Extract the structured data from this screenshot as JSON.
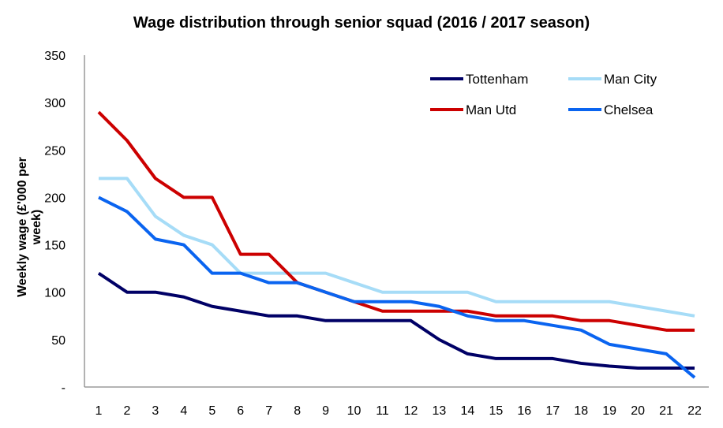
{
  "chart_data": {
    "type": "line",
    "title": "Wage distribution through senior squad (2016 / 2017 season)",
    "xlabel": "",
    "ylabel": "Weekly wage (£'000 per week)",
    "ylim": [
      0,
      350
    ],
    "yticks": [
      0,
      50,
      100,
      150,
      200,
      250,
      300,
      350
    ],
    "ytick_labels": [
      "-",
      "50",
      "100",
      "150",
      "200",
      "250",
      "300",
      "350"
    ],
    "grid": false,
    "legend": "top-right",
    "categories": [
      "1",
      "2",
      "3",
      "4",
      "5",
      "6",
      "7",
      "8",
      "9",
      "10",
      "11",
      "12",
      "13",
      "14",
      "15",
      "16",
      "17",
      "18",
      "19",
      "20",
      "21",
      "22"
    ],
    "series": [
      {
        "name": "Tottenham",
        "color": "#000066",
        "values": [
          120,
          100,
          100,
          95,
          85,
          80,
          75,
          75,
          70,
          70,
          70,
          70,
          50,
          35,
          30,
          30,
          30,
          25,
          22,
          20,
          20,
          20
        ]
      },
      {
        "name": "Man City",
        "color": "#a6dcf7",
        "values": [
          220,
          220,
          180,
          160,
          150,
          120,
          120,
          120,
          120,
          110,
          100,
          100,
          100,
          100,
          90,
          90,
          90,
          90,
          90,
          85,
          80,
          75
        ]
      },
      {
        "name": "Man Utd",
        "color": "#cc0000",
        "values": [
          290,
          260,
          220,
          200,
          200,
          140,
          140,
          110,
          100,
          90,
          80,
          80,
          80,
          80,
          75,
          75,
          75,
          70,
          70,
          65,
          60,
          60
        ]
      },
      {
        "name": "Chelsea",
        "color": "#0a64f0",
        "values": [
          200,
          185,
          156,
          150,
          120,
          120,
          110,
          110,
          100,
          90,
          90,
          90,
          85,
          75,
          70,
          70,
          65,
          60,
          45,
          40,
          35,
          10
        ]
      }
    ]
  }
}
